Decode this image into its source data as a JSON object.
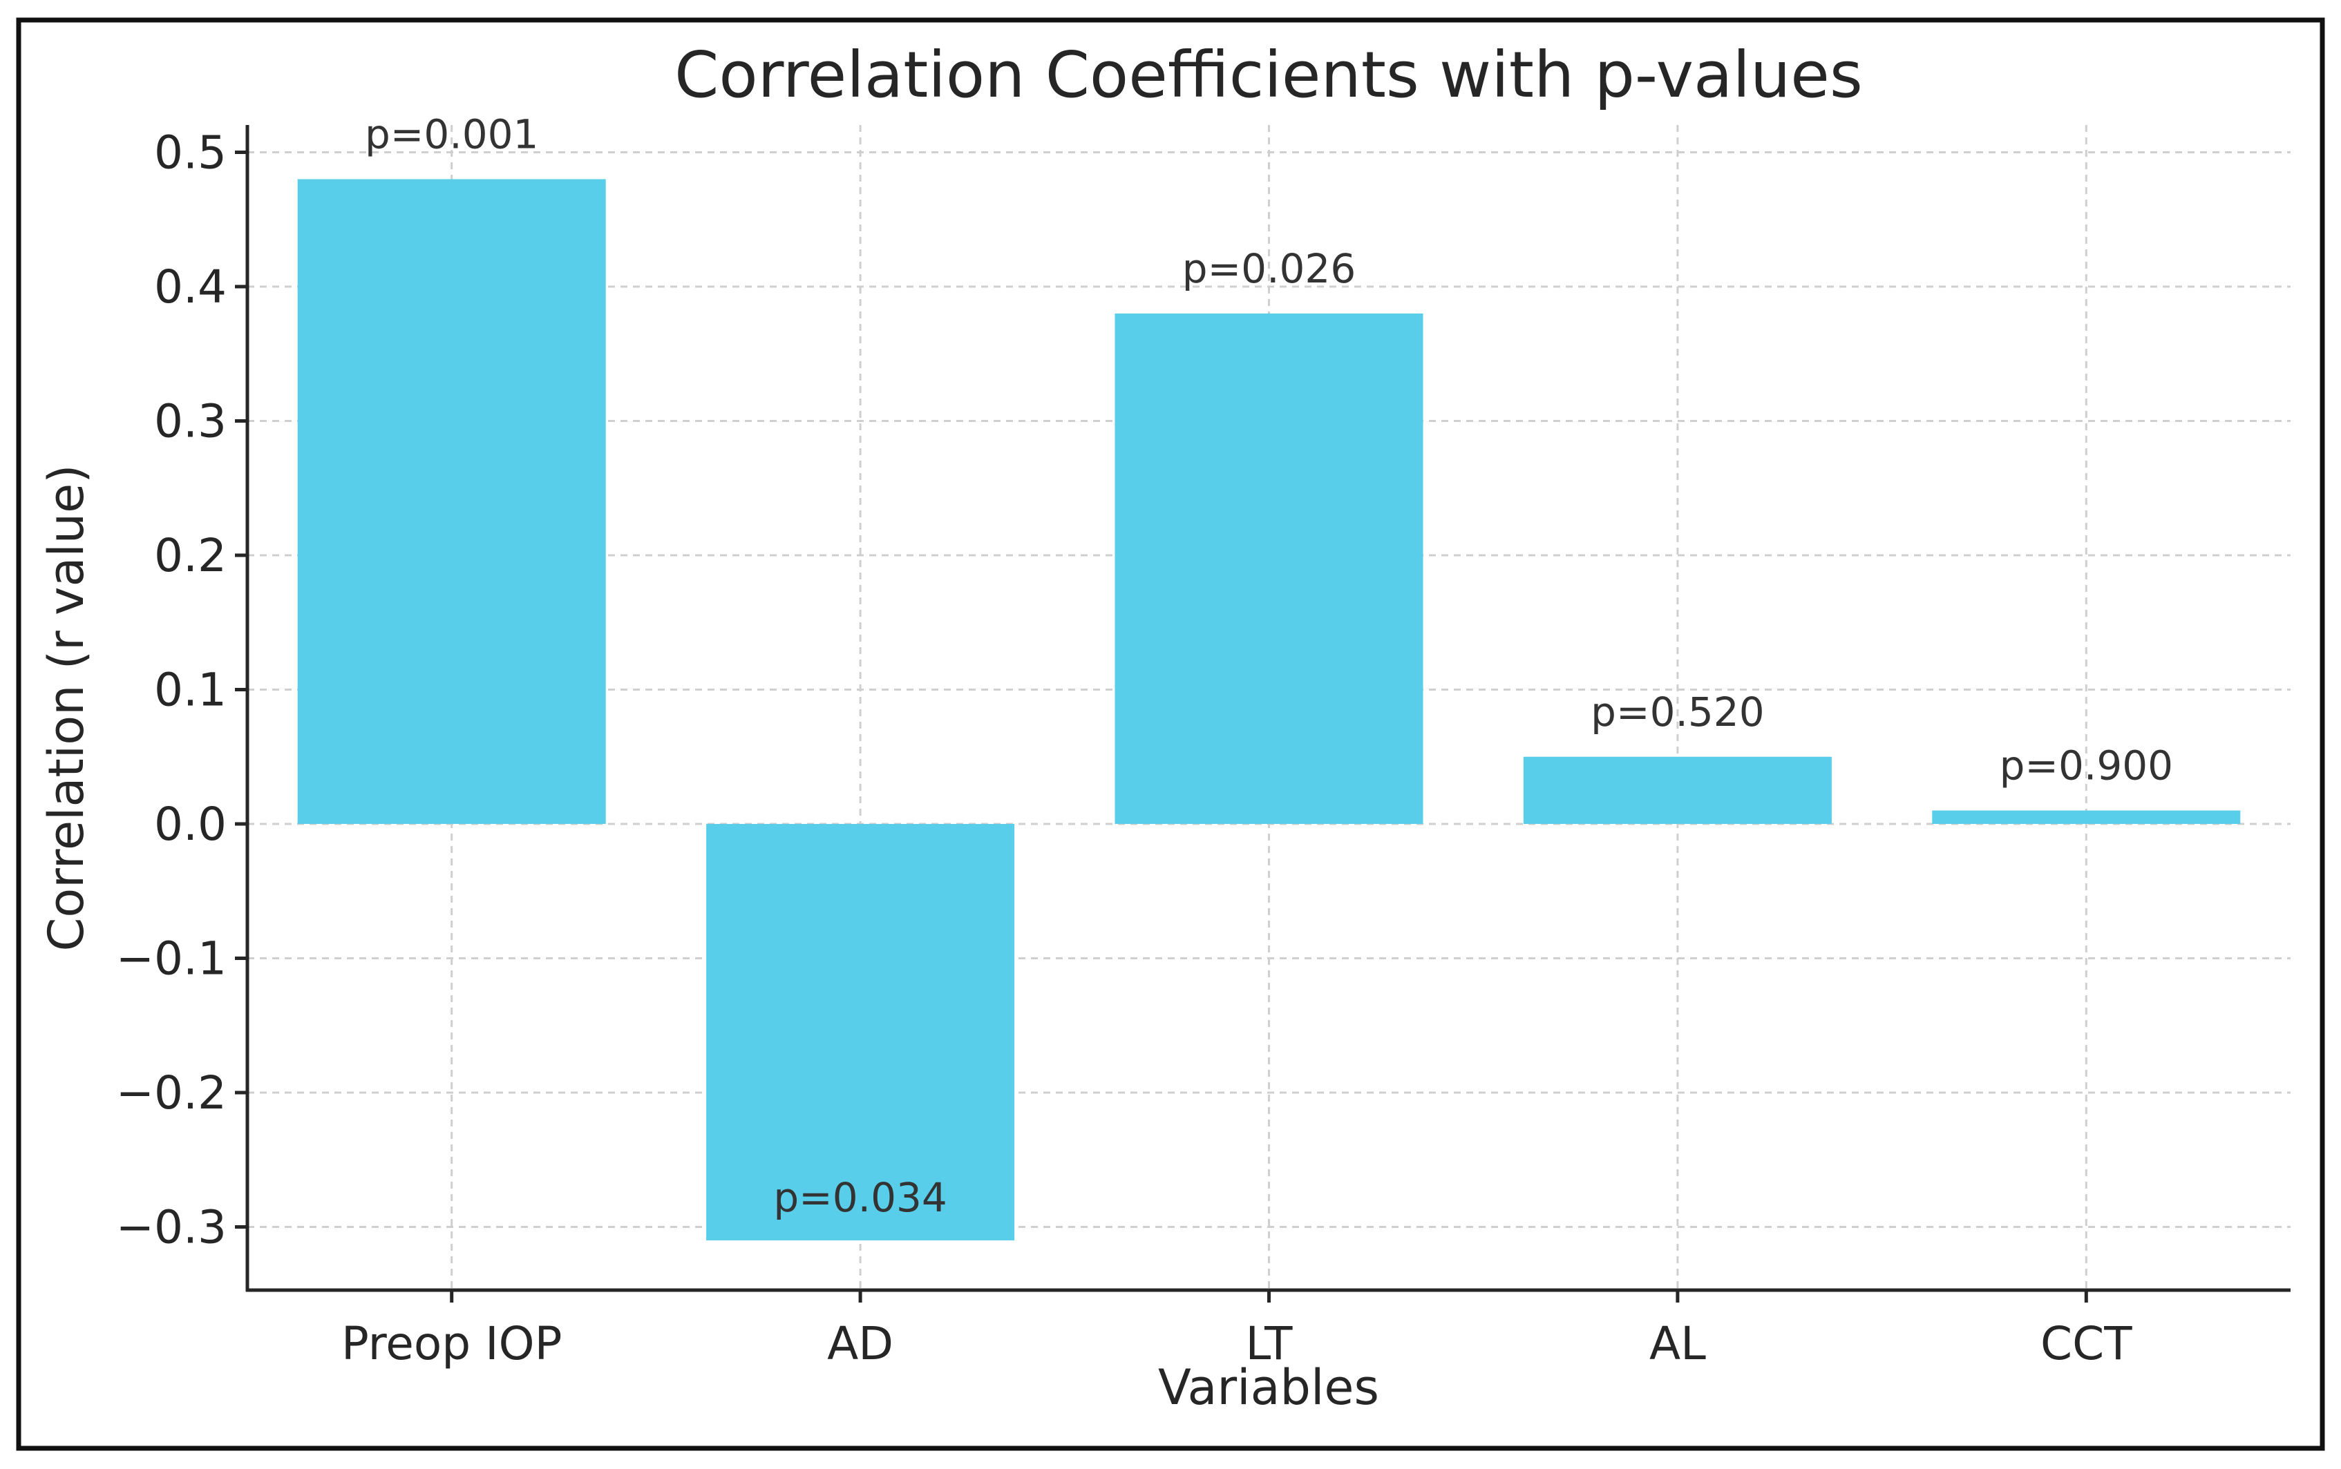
{
  "chart_data": {
    "type": "bar",
    "title": "Correlation Coefficients with p-values",
    "xlabel": "Variables",
    "ylabel": "Correlation (r value)",
    "categories": [
      "Preop IOP",
      "AD",
      "LT",
      "AL",
      "CCT"
    ],
    "values": [
      0.48,
      -0.31,
      0.38,
      0.05,
      0.01
    ],
    "annotations": [
      "p=0.001",
      "p=0.034",
      "p=0.026",
      "p=0.520",
      "p=0.900"
    ],
    "yticks": [
      "−0.3",
      "−0.2",
      "−0.1",
      "0.0",
      "0.1",
      "0.2",
      "0.3",
      "0.4",
      "0.5"
    ],
    "ylim": [
      -0.345,
      0.52
    ],
    "grid": true,
    "bar_color": "#59ceeb"
  }
}
